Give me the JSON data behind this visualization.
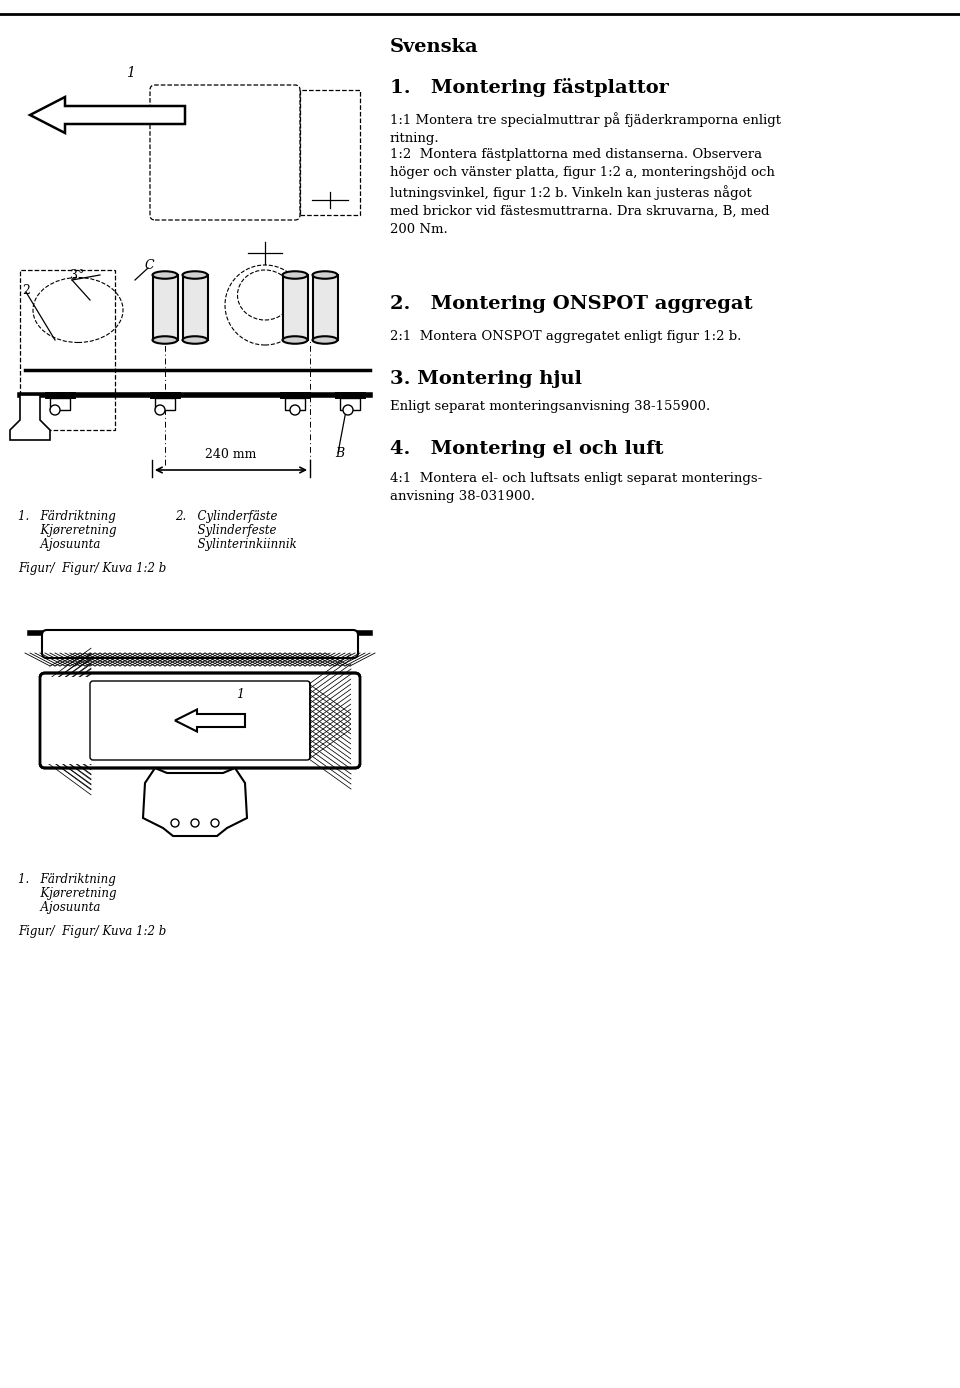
{
  "bg_color": "#ffffff",
  "title_svenska": "Svenska",
  "section1_title": "1.   Montering fästplattor",
  "section1_text1": "1:1 Montera tre specialmuttrar på fjäderkramporna enligt\nritning.",
  "section1_text2": "1:2  Montera fästplattorna med distanserna. Observera\nhöger och vänster platta, figur 1:2 a, monteringshöjd och\nlutningsvinkel, figur 1:2 b. Vinkeln kan justeras något\nmed brickor vid fästesmuttrarna. Dra skruvarna, B, med\n200 Nm.",
  "section2_title": "2.   Montering ONSPOT aggregat",
  "section2_text": "2:1  Montera ONSPOT aggregatet enligt figur 1:2 b.",
  "section3_title": "3. Montering hjul",
  "section3_text": "Enligt separat monteringsanvisning 38-155900.",
  "section4_title": "4.   Montering el och luft",
  "section4_text": "4:1  Montera el- och luftsats enligt separat monterings-\nanvisning 38-031900.",
  "caption1_line1": "1.   Färdriktning",
  "caption1_line2": "      Kjøreretning",
  "caption1_line3": "      Ajosuunta",
  "caption2_line1": "2.   Cylinderfäste",
  "caption2_line2": "      Sylinderfeste",
  "caption2_line3": "      Sylinterinkiinnik",
  "figcaption_top": "Figur/  Figur/ Kuva 1:2 b",
  "dim_label": "240 mm",
  "B_label": "B",
  "label_1": "1",
  "label_2": "2",
  "label_3deg": "3°",
  "label_C": "C",
  "caption_bottom1_line1": "1.   Färdriktning",
  "caption_bottom1_line2": "      Kjøreretning",
  "caption_bottom1_line3": "      Ajosuunta",
  "figcaption_bottom": "Figur/  Figur/ Kuva 1:2 b"
}
